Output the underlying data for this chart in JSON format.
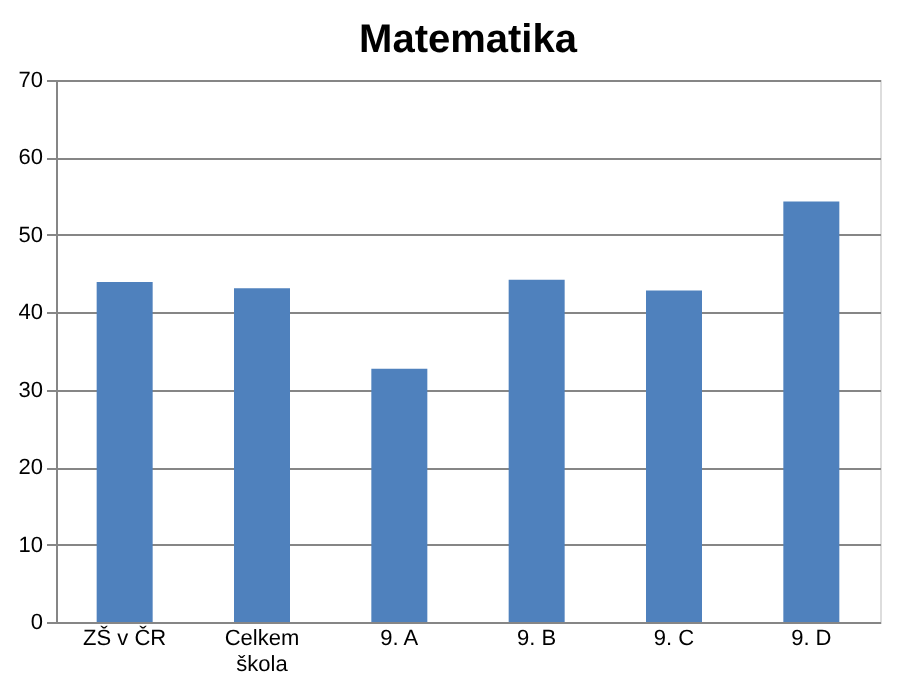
{
  "chart_data": {
    "type": "bar",
    "title": "Matematika",
    "categories": [
      "ZŠ v ČR",
      "Celkem škola",
      "9. A",
      "9. B",
      "9. C",
      "9. D"
    ],
    "values": [
      43.9,
      43.1,
      32.7,
      44.2,
      42.8,
      54.3
    ],
    "color": "#4f81bd",
    "ylim": [
      0,
      70
    ],
    "yticks": [
      0,
      10,
      20,
      30,
      40,
      50,
      60,
      70
    ],
    "grid": "y"
  }
}
